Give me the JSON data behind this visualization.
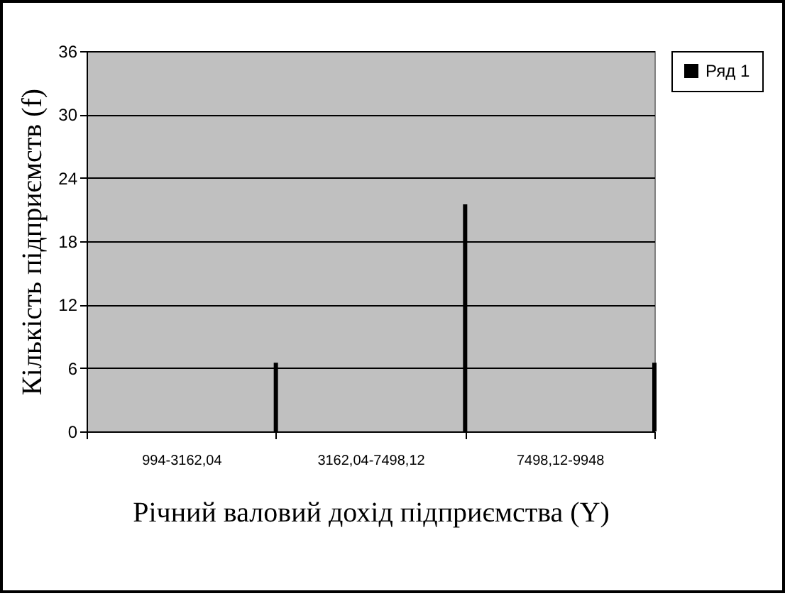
{
  "chart_data": {
    "type": "bar",
    "xlabel": "Річний валовий дохід підприємства (Y)",
    "ylabel": "Кількість підприємств (f)",
    "categories": [
      "994-3162,04",
      "3162,04-7498,12",
      "7498,12-9948"
    ],
    "series": [
      {
        "name": "Ряд 1",
        "color": "#000000",
        "values": [
          6.5,
          21.5,
          6.5
        ]
      }
    ],
    "ylim": [
      0,
      36
    ],
    "yticks": [
      0,
      6,
      12,
      18,
      24,
      30,
      36
    ],
    "grid": "y",
    "legend": "right"
  }
}
